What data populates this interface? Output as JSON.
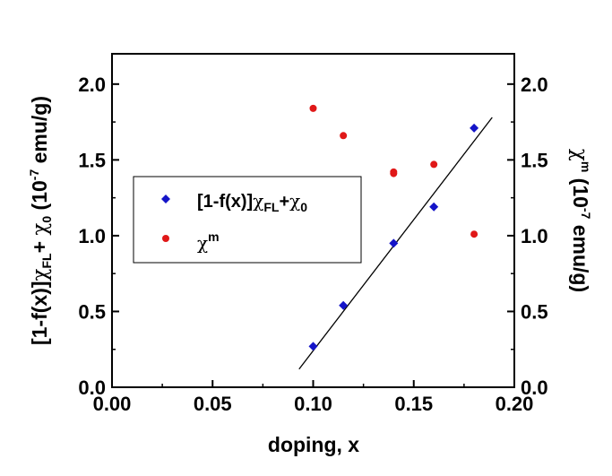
{
  "chart_data": {
    "type": "scatter",
    "xlabel": "doping, x",
    "ylabel_left": {
      "prefix": "[1-f(x)]",
      "chi": "χ",
      "sub_fl": "FL",
      "plus": "+ ",
      "chi0": "χ",
      "sub0": "0",
      "unit_a": " (10",
      "exp": "-7",
      "unit_b": " emu/g)"
    },
    "ylabel_right": {
      "chi": "χ",
      "sup_m": "m",
      "unit_a": " (10",
      "exp": "-7",
      "unit_b": " emu/g)"
    },
    "xlim": [
      0.0,
      0.2
    ],
    "ylim": [
      0.0,
      2.2
    ],
    "xticks": [
      "0.00",
      "0.05",
      "0.10",
      "0.15",
      "0.20"
    ],
    "xtick_values": [
      0.0,
      0.05,
      0.1,
      0.15,
      0.2
    ],
    "yticks": [
      "0.0",
      "0.5",
      "1.0",
      "1.5",
      "2.0"
    ],
    "ytick_values": [
      0.0,
      0.5,
      1.0,
      1.5,
      2.0
    ],
    "series": [
      {
        "name": "[1-f(x)]χFL+χ0",
        "marker": "diamond",
        "color": "#1414c8",
        "points": [
          [
            0.1,
            0.27
          ],
          [
            0.115,
            0.54
          ],
          [
            0.14,
            0.95
          ],
          [
            0.16,
            1.19
          ],
          [
            0.18,
            1.71
          ]
        ]
      },
      {
        "name": "χm",
        "marker": "circle",
        "color": "#e01818",
        "points": [
          [
            0.1,
            1.84
          ],
          [
            0.115,
            1.66
          ],
          [
            0.14,
            1.42
          ],
          [
            0.14,
            1.41
          ],
          [
            0.16,
            1.47
          ],
          [
            0.18,
            1.01
          ]
        ]
      }
    ],
    "fit_line": {
      "color": "#000000",
      "x": [
        0.093,
        0.189
      ],
      "y": [
        0.12,
        1.78
      ]
    },
    "legend": {
      "placement": "upper-left-inner",
      "entries": [
        {
          "prefix": "[1-f(x)]",
          "chi": "χ",
          "sub1": "FL",
          "plus": "+",
          "chi2": "χ",
          "sub2": "0"
        },
        {
          "chi": "χ",
          "sup": "m"
        }
      ]
    }
  }
}
